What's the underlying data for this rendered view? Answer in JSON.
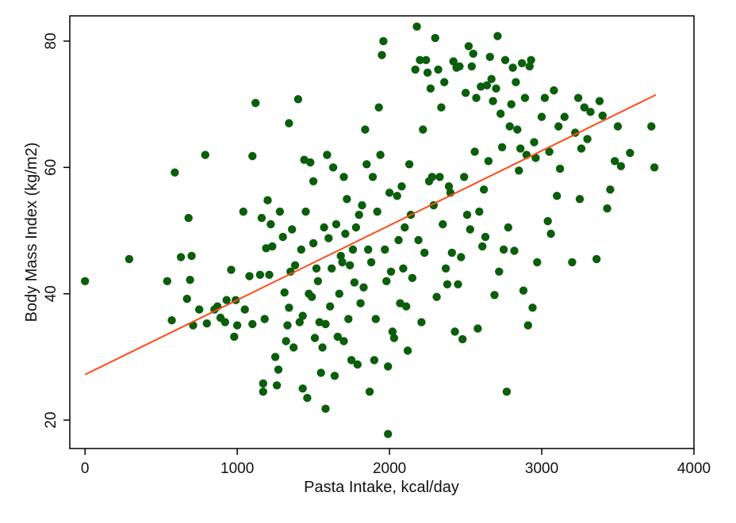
{
  "chart_data": {
    "type": "scatter",
    "xlabel": "Pasta Intake, kcal/day",
    "ylabel": "Body Mass Index (kg/m2)",
    "xlim": [
      -100,
      4000
    ],
    "ylim": [
      15.5,
      84
    ],
    "x_ticks": [
      0,
      1000,
      2000,
      3000,
      4000
    ],
    "y_ticks": [
      20,
      40,
      60,
      80
    ],
    "grid": false,
    "legend": "none",
    "point_color": "#0b5e0b",
    "line_color": "#ff4a14",
    "fit_line": {
      "x": [
        0,
        3750
      ],
      "y": [
        27.2,
        71.5
      ]
    },
    "points": [
      [
        0,
        42
      ],
      [
        290,
        45.5
      ],
      [
        540,
        42
      ],
      [
        570,
        35.8
      ],
      [
        590,
        59.2
      ],
      [
        630,
        45.8
      ],
      [
        670,
        39.2
      ],
      [
        680,
        52
      ],
      [
        690,
        42.2
      ],
      [
        700,
        46
      ],
      [
        710,
        35
      ],
      [
        750,
        37.5
      ],
      [
        790,
        62
      ],
      [
        800,
        35.3
      ],
      [
        850,
        37.5
      ],
      [
        870,
        38
      ],
      [
        890,
        36.2
      ],
      [
        920,
        35.5
      ],
      [
        930,
        39
      ],
      [
        960,
        43.8
      ],
      [
        980,
        33.2
      ],
      [
        990,
        39
      ],
      [
        1000,
        35
      ],
      [
        1040,
        53
      ],
      [
        1050,
        37.5
      ],
      [
        1080,
        42.8
      ],
      [
        1100,
        61.8
      ],
      [
        1100,
        35.2
      ],
      [
        1120,
        70.2
      ],
      [
        1150,
        43
      ],
      [
        1160,
        52
      ],
      [
        1170,
        24.5
      ],
      [
        1170,
        25.8
      ],
      [
        1180,
        36
      ],
      [
        1190,
        47.2
      ],
      [
        1200,
        54.8
      ],
      [
        1210,
        43
      ],
      [
        1220,
        51
      ],
      [
        1230,
        47.5
      ],
      [
        1250,
        30
      ],
      [
        1260,
        25.5
      ],
      [
        1270,
        28
      ],
      [
        1280,
        53
      ],
      [
        1300,
        49
      ],
      [
        1310,
        40.2
      ],
      [
        1320,
        32.5
      ],
      [
        1330,
        35
      ],
      [
        1340,
        67
      ],
      [
        1340,
        37.8
      ],
      [
        1350,
        43.5
      ],
      [
        1360,
        50.2
      ],
      [
        1370,
        31.5
      ],
      [
        1380,
        44.5
      ],
      [
        1400,
        70.8
      ],
      [
        1410,
        35.5
      ],
      [
        1420,
        47
      ],
      [
        1430,
        25
      ],
      [
        1430,
        36.5
      ],
      [
        1440,
        61.2
      ],
      [
        1450,
        53
      ],
      [
        1460,
        23.5
      ],
      [
        1470,
        40
      ],
      [
        1480,
        60.8
      ],
      [
        1490,
        39.5
      ],
      [
        1500,
        48
      ],
      [
        1500,
        57.8
      ],
      [
        1510,
        33
      ],
      [
        1520,
        44
      ],
      [
        1530,
        42
      ],
      [
        1540,
        35.5
      ],
      [
        1550,
        27.5
      ],
      [
        1560,
        31.5
      ],
      [
        1570,
        50.5
      ],
      [
        1580,
        21.8
      ],
      [
        1580,
        35.2
      ],
      [
        1590,
        62
      ],
      [
        1600,
        48.8
      ],
      [
        1610,
        38
      ],
      [
        1620,
        44
      ],
      [
        1630,
        60
      ],
      [
        1640,
        27
      ],
      [
        1650,
        51
      ],
      [
        1660,
        33.2
      ],
      [
        1670,
        40
      ],
      [
        1680,
        46
      ],
      [
        1690,
        45
      ],
      [
        1700,
        58.5
      ],
      [
        1700,
        32.5
      ],
      [
        1710,
        49.5
      ],
      [
        1720,
        55
      ],
      [
        1730,
        36
      ],
      [
        1740,
        44.5
      ],
      [
        1750,
        29.5
      ],
      [
        1760,
        47
      ],
      [
        1770,
        41.8
      ],
      [
        1780,
        50.5
      ],
      [
        1790,
        28.8
      ],
      [
        1800,
        52.5
      ],
      [
        1810,
        38.5
      ],
      [
        1820,
        54
      ],
      [
        1830,
        41
      ],
      [
        1840,
        66
      ],
      [
        1850,
        60.5
      ],
      [
        1860,
        47
      ],
      [
        1870,
        24.5
      ],
      [
        1880,
        45
      ],
      [
        1890,
        58.5
      ],
      [
        1900,
        29.5
      ],
      [
        1910,
        36
      ],
      [
        1920,
        53
      ],
      [
        1930,
        69.5
      ],
      [
        1940,
        62
      ],
      [
        1950,
        77.8
      ],
      [
        1960,
        80
      ],
      [
        1970,
        47
      ],
      [
        1980,
        42
      ],
      [
        1990,
        28.5
      ],
      [
        1990,
        17.8
      ],
      [
        2000,
        56
      ],
      [
        2010,
        43.5
      ],
      [
        2020,
        34
      ],
      [
        2030,
        33
      ],
      [
        2050,
        55.5
      ],
      [
        2060,
        48.5
      ],
      [
        2070,
        38.5
      ],
      [
        2080,
        57
      ],
      [
        2090,
        44
      ],
      [
        2100,
        50.5
      ],
      [
        2110,
        38
      ],
      [
        2120,
        31
      ],
      [
        2130,
        60.5
      ],
      [
        2140,
        52.5
      ],
      [
        2150,
        42.5
      ],
      [
        2170,
        75.5
      ],
      [
        2180,
        82.3
      ],
      [
        2190,
        48.5
      ],
      [
        2200,
        77
      ],
      [
        2210,
        35.5
      ],
      [
        2220,
        66
      ],
      [
        2230,
        46.5
      ],
      [
        2240,
        77
      ],
      [
        2250,
        75
      ],
      [
        2260,
        57.8
      ],
      [
        2270,
        72.5
      ],
      [
        2280,
        58.5
      ],
      [
        2290,
        54
      ],
      [
        2300,
        80.5
      ],
      [
        2310,
        39.5
      ],
      [
        2320,
        75.5
      ],
      [
        2330,
        58.5
      ],
      [
        2340,
        69.5
      ],
      [
        2350,
        51
      ],
      [
        2360,
        73.5
      ],
      [
        2370,
        44
      ],
      [
        2380,
        41.5
      ],
      [
        2390,
        57
      ],
      [
        2400,
        56
      ],
      [
        2410,
        46.5
      ],
      [
        2420,
        76.8
      ],
      [
        2430,
        34
      ],
      [
        2440,
        75.8
      ],
      [
        2450,
        41.5
      ],
      [
        2460,
        76
      ],
      [
        2470,
        45.8
      ],
      [
        2480,
        32.8
      ],
      [
        2490,
        58.5
      ],
      [
        2500,
        71.8
      ],
      [
        2510,
        52.5
      ],
      [
        2520,
        79.2
      ],
      [
        2530,
        50.2
      ],
      [
        2540,
        76
      ],
      [
        2550,
        78
      ],
      [
        2560,
        62.5
      ],
      [
        2570,
        71
      ],
      [
        2580,
        34.5
      ],
      [
        2590,
        53
      ],
      [
        2600,
        72.8
      ],
      [
        2610,
        47.5
      ],
      [
        2620,
        56.5
      ],
      [
        2630,
        49
      ],
      [
        2640,
        73
      ],
      [
        2650,
        61
      ],
      [
        2660,
        77.5
      ],
      [
        2670,
        74
      ],
      [
        2680,
        70.5
      ],
      [
        2690,
        39.8
      ],
      [
        2700,
        72.5
      ],
      [
        2710,
        80.8
      ],
      [
        2720,
        43.5
      ],
      [
        2730,
        68.5
      ],
      [
        2740,
        63.2
      ],
      [
        2750,
        47
      ],
      [
        2760,
        77
      ],
      [
        2770,
        24.5
      ],
      [
        2780,
        50.5
      ],
      [
        2790,
        66.5
      ],
      [
        2800,
        70
      ],
      [
        2810,
        75.8
      ],
      [
        2820,
        46.8
      ],
      [
        2830,
        73.5
      ],
      [
        2840,
        66
      ],
      [
        2850,
        59.5
      ],
      [
        2860,
        63
      ],
      [
        2870,
        76.5
      ],
      [
        2880,
        40.5
      ],
      [
        2890,
        71
      ],
      [
        2900,
        62
      ],
      [
        2910,
        35
      ],
      [
        2920,
        76
      ],
      [
        2930,
        77
      ],
      [
        2940,
        37.8
      ],
      [
        2950,
        64
      ],
      [
        2960,
        61.5
      ],
      [
        2970,
        45
      ],
      [
        3000,
        68
      ],
      [
        3020,
        71
      ],
      [
        3040,
        51.5
      ],
      [
        3050,
        62.5
      ],
      [
        3060,
        49.5
      ],
      [
        3080,
        72.2
      ],
      [
        3100,
        55.5
      ],
      [
        3110,
        66.5
      ],
      [
        3120,
        59.8
      ],
      [
        3150,
        68
      ],
      [
        3200,
        45
      ],
      [
        3220,
        65.5
      ],
      [
        3240,
        71
      ],
      [
        3250,
        55
      ],
      [
        3260,
        63
      ],
      [
        3280,
        69.5
      ],
      [
        3300,
        64.5
      ],
      [
        3320,
        68.8
      ],
      [
        3360,
        45.5
      ],
      [
        3380,
        70.5
      ],
      [
        3400,
        68.2
      ],
      [
        3430,
        53.5
      ],
      [
        3450,
        56.5
      ],
      [
        3480,
        61
      ],
      [
        3500,
        66.5
      ],
      [
        3520,
        60.2
      ],
      [
        3580,
        62.3
      ],
      [
        3720,
        66.5
      ],
      [
        3740,
        60
      ]
    ]
  }
}
